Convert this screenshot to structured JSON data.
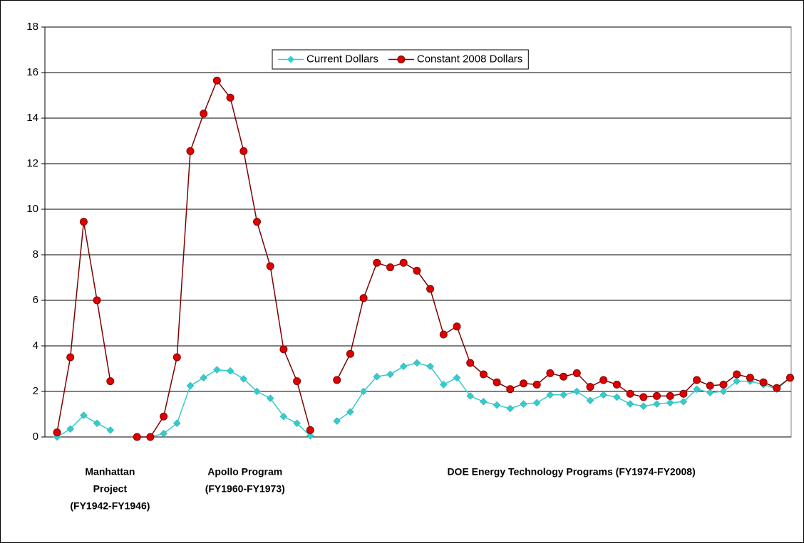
{
  "chart_data": {
    "type": "line",
    "categories": [
      null,
      null,
      null,
      null,
      null,
      null,
      null,
      null,
      null,
      null,
      null,
      null,
      null,
      null,
      null,
      null,
      null,
      null,
      null,
      null,
      null,
      null,
      null,
      null,
      null,
      null,
      null,
      null,
      null,
      null,
      null,
      null,
      null,
      null,
      null,
      null,
      null,
      null,
      null,
      null,
      null,
      null,
      null,
      null,
      null,
      null,
      null,
      null,
      null,
      null,
      null,
      null,
      null,
      null,
      null,
      null
    ],
    "series": [
      {
        "name": "Current Dollars",
        "color": "#33cccc",
        "marker": "diamond",
        "values": [
          0.0,
          0.35,
          0.95,
          0.6,
          0.3,
          null,
          0.0,
          0.0,
          0.15,
          0.6,
          2.25,
          2.6,
          2.95,
          2.9,
          2.55,
          2.0,
          1.7,
          0.9,
          0.6,
          0.05,
          null,
          0.7,
          1.1,
          2.0,
          2.65,
          2.75,
          3.1,
          3.25,
          3.1,
          2.3,
          2.6,
          1.8,
          1.55,
          1.4,
          1.25,
          1.45,
          1.5,
          1.85,
          1.85,
          2.0,
          1.6,
          1.85,
          1.75,
          1.45,
          1.35,
          1.45,
          1.5,
          1.55,
          2.1,
          1.95,
          2.0,
          2.45,
          2.45,
          2.3,
          2.1,
          2.6
        ]
      },
      {
        "name": "Constant 2008 Dollars",
        "color": "#800000",
        "marker_fill": "#e00000",
        "marker": "circle",
        "values": [
          0.2,
          3.5,
          9.45,
          6.0,
          2.45,
          null,
          0.0,
          0.0,
          0.9,
          3.5,
          12.55,
          14.2,
          15.65,
          14.9,
          12.55,
          9.45,
          7.5,
          3.85,
          2.45,
          0.3,
          null,
          2.5,
          3.65,
          6.1,
          7.65,
          7.45,
          7.65,
          7.3,
          6.5,
          4.5,
          4.85,
          3.25,
          2.75,
          2.4,
          2.1,
          2.35,
          2.3,
          2.8,
          2.65,
          2.8,
          2.2,
          2.5,
          2.3,
          1.9,
          1.75,
          1.8,
          1.8,
          1.9,
          2.5,
          2.25,
          2.3,
          2.75,
          2.6,
          2.4,
          2.15,
          2.6
        ]
      }
    ],
    "ylim": [
      0,
      18
    ],
    "yticks": [
      0,
      2,
      4,
      6,
      8,
      10,
      12,
      14,
      16,
      18
    ],
    "grid": true,
    "legend": "top",
    "annotations": [
      [
        "Manhattan",
        "Project",
        "(FY1942-FY1946)"
      ],
      [
        "Apollo Program",
        "(FY1960-FY1973)"
      ],
      [
        "DOE Energy Technology Programs (FY1974-FY2008)"
      ]
    ]
  }
}
